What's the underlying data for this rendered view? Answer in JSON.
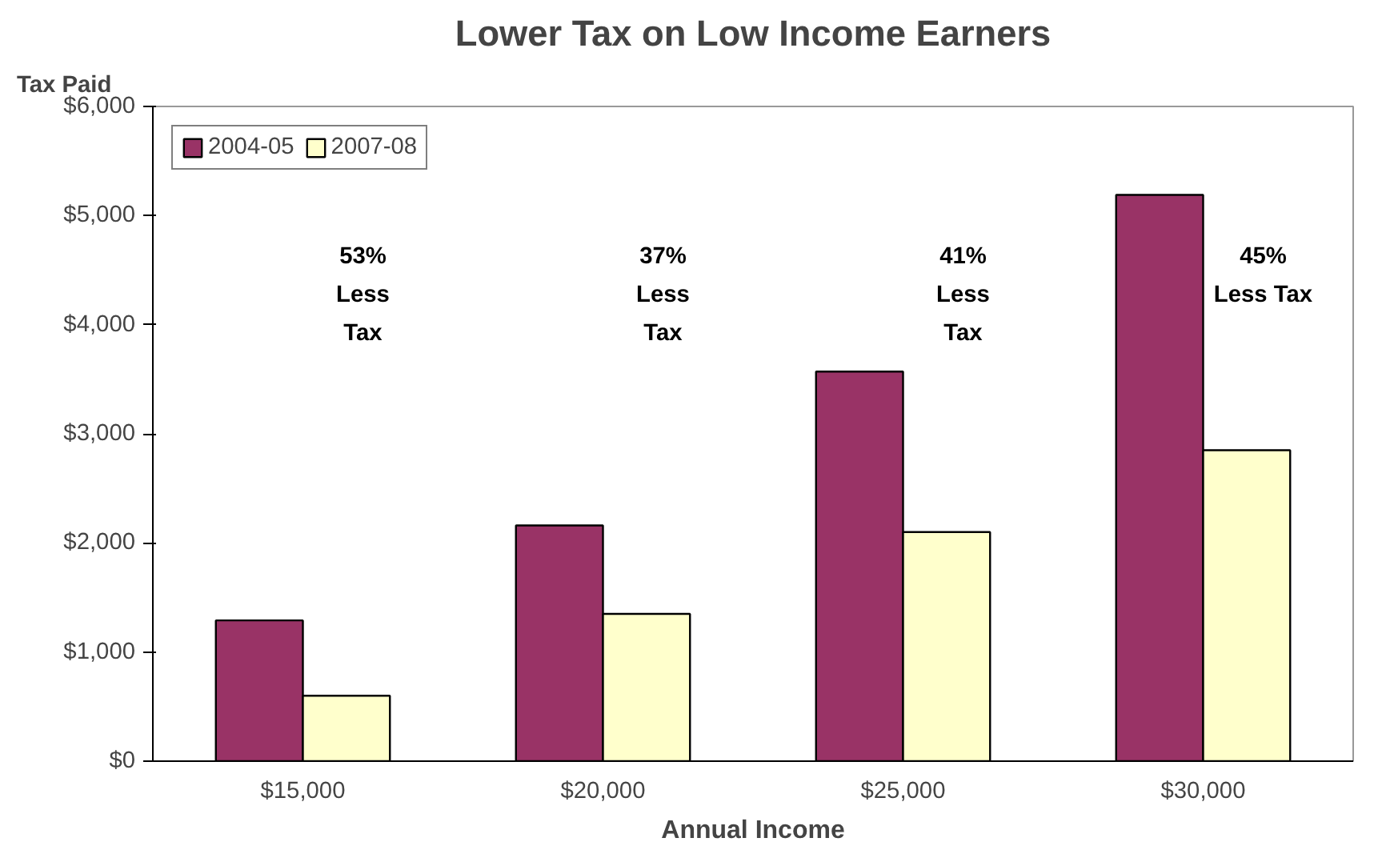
{
  "chart_data": {
    "type": "bar",
    "title": "Lower Tax on Low Income Earners",
    "xlabel": "Annual Income",
    "ylabel": "Tax Paid",
    "categories": [
      "$15,000",
      "$20,000",
      "$25,000",
      "$30,000"
    ],
    "series": [
      {
        "name": "2004-05",
        "color": "#993366",
        "values": [
          1290,
          2160,
          3570,
          5190
        ]
      },
      {
        "name": "2007-08",
        "color": "#ffffcc",
        "values": [
          600,
          1350,
          2100,
          2850
        ]
      }
    ],
    "ylim": [
      0,
      6000
    ],
    "yticks": [
      {
        "value": 0,
        "label": "$0"
      },
      {
        "value": 1000,
        "label": "$1,000"
      },
      {
        "value": 2000,
        "label": "$2,000"
      },
      {
        "value": 3000,
        "label": "$3,000"
      },
      {
        "value": 4000,
        "label": "$4,000"
      },
      {
        "value": 5000,
        "label": "$5,000"
      },
      {
        "value": 6000,
        "label": "$6,000"
      }
    ],
    "annotations": [
      "53%\nLess\nTax",
      "37%\nLess\nTax",
      "41%\nLess\nTax",
      "45%\nLess Tax"
    ],
    "grid": false,
    "legend": "top left"
  }
}
